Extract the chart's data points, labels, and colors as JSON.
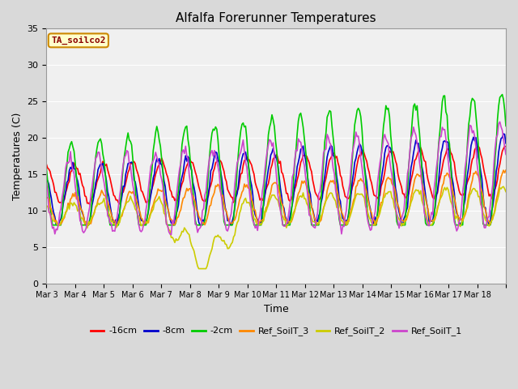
{
  "title": "Alfalfa Forerunner Temperatures",
  "xlabel": "Time",
  "ylabel": "Temperatures (C)",
  "ylim": [
    0,
    35
  ],
  "annotation_text": "TA_soilco2",
  "annotation_color": "#8b0000",
  "annotation_bg": "#ffffcc",
  "annotation_border": "#cc8800",
  "fig_bg": "#d9d9d9",
  "plot_bg": "#f0f0f0",
  "grid_color": "#ffffff",
  "series": [
    {
      "label": "-16cm",
      "color": "#ff0000"
    },
    {
      "label": "-8cm",
      "color": "#0000cc"
    },
    {
      "label": "-2cm",
      "color": "#00cc00"
    },
    {
      "label": "Ref_SoilT_3",
      "color": "#ff8800"
    },
    {
      "label": "Ref_SoilT_2",
      "color": "#cccc00"
    },
    {
      "label": "Ref_SoilT_1",
      "color": "#cc44cc"
    }
  ],
  "tick_labels": [
    "Mar 3",
    "Mar 4",
    "Mar 5",
    "Mar 6",
    "Mar 7",
    "Mar 8",
    "Mar 9",
    "Mar 10",
    "Mar 11",
    "Mar 12",
    "Mar 13",
    "Mar 14",
    "Mar 15",
    "Mar 16",
    "Mar 17",
    "Mar 18"
  ],
  "yticks": [
    0,
    5,
    10,
    15,
    20,
    25,
    30,
    35
  ]
}
